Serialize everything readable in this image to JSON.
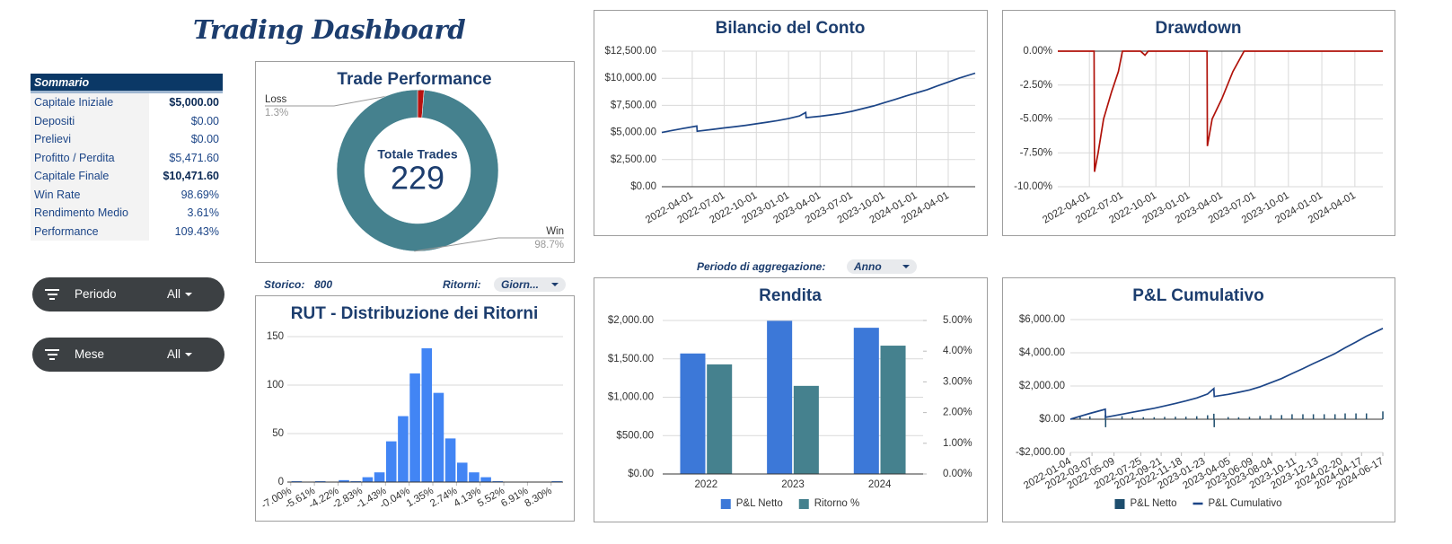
{
  "header": {
    "title": "Trading Dashboard"
  },
  "summary": {
    "title": "Sommario",
    "rows": [
      [
        "Capitale Iniziale",
        "$5,000.00"
      ],
      [
        "Depositi",
        "$0.00"
      ],
      [
        "Prelievi",
        "$0.00"
      ],
      [
        "Profitto / Perdita",
        "$5,471.60"
      ],
      [
        "Capitale Finale",
        "$10,471.60"
      ],
      [
        "Win Rate",
        "98.69%"
      ],
      [
        "Rendimento Medio",
        "3.61%"
      ],
      [
        "Performance",
        "109.43%"
      ]
    ]
  },
  "filters": [
    {
      "label": "Periodo",
      "value": "All"
    },
    {
      "label": "Mese",
      "value": "All"
    }
  ],
  "controls": {
    "storico_label": "Storico:",
    "storico_value": 800,
    "ritorni_label": "Ritorni:",
    "ritorni_value": "Giorn...",
    "periodo_label": "Periodo di aggregazione:",
    "periodo_value": "Anno"
  },
  "chart_data": [
    {
      "type": "pie",
      "title": "Trade Performance",
      "center_label": "Totale Trades",
      "center_value": 229,
      "categories": [
        "Loss",
        "Win"
      ],
      "values": [
        1.3,
        98.7
      ],
      "value_labels": [
        "1.3%",
        "98.7%"
      ],
      "colors": [
        "#b7120f",
        "#45818e"
      ]
    },
    {
      "type": "line",
      "title": "Bilancio del Conto",
      "color": "#1c4587",
      "grid": true,
      "xgrid": true,
      "x": [
        "2022-01-04",
        "2022-02-01",
        "2022-03-01",
        "2022-04-14",
        "2022-04-15",
        "2022-06-01",
        "2022-07-01",
        "2022-08-01",
        "2022-09-01",
        "2022-10-01",
        "2022-11-01",
        "2022-12-01",
        "2023-01-01",
        "2023-02-01",
        "2023-02-19",
        "2023-02-20",
        "2023-04-01",
        "2023-05-01",
        "2023-06-01",
        "2023-07-01",
        "2023-08-01",
        "2023-09-01",
        "2023-10-01",
        "2023-11-01",
        "2023-12-01",
        "2024-01-01",
        "2024-02-01",
        "2024-03-01",
        "2024-04-01",
        "2024-05-01",
        "2024-06-17"
      ],
      "values": [
        5000,
        5180,
        5350,
        5600,
        5120,
        5300,
        5420,
        5540,
        5660,
        5800,
        5950,
        6100,
        6280,
        6520,
        6850,
        6370,
        6500,
        6620,
        6760,
        6950,
        7200,
        7450,
        7750,
        8050,
        8350,
        8650,
        8950,
        9300,
        9650,
        10000,
        10470
      ],
      "xlim": [
        "2022-01-04",
        "2024-06-17"
      ],
      "xticks": [
        "2022-04-01",
        "2022-07-01",
        "2022-10-01",
        "2023-01-01",
        "2023-04-01",
        "2023-07-01",
        "2023-10-01",
        "2024-01-01",
        "2024-04-01"
      ],
      "ylim": [
        0,
        12500
      ],
      "yticks": [
        {
          "value": 0,
          "label": "$0.00"
        },
        {
          "value": 2500,
          "label": "$2,500.00"
        },
        {
          "value": 5000,
          "label": "$5,000.00"
        },
        {
          "value": 7500,
          "label": "$7,500.00"
        },
        {
          "value": 10000,
          "label": "$10,000.00"
        },
        {
          "value": 12500,
          "label": "$12,500.00"
        }
      ]
    },
    {
      "type": "line",
      "title": "Drawdown",
      "color": "#b0120a",
      "grid": true,
      "xgrid": true,
      "x": [
        "2022-01-04",
        "2022-04-14",
        "2022-04-15",
        "2022-04-25",
        "2022-05-10",
        "2022-06-01",
        "2022-06-20",
        "2022-07-01",
        "2022-08-20",
        "2022-09-01",
        "2022-09-10",
        "2023-02-19",
        "2023-02-20",
        "2023-03-05",
        "2023-04-01",
        "2023-05-01",
        "2023-06-01",
        "2024-06-17"
      ],
      "values": [
        0,
        0,
        -8.9,
        -7.5,
        -5.0,
        -3.0,
        -1.5,
        0,
        0,
        -0.3,
        0,
        0,
        -7.0,
        -5.0,
        -3.5,
        -1.5,
        0,
        0
      ],
      "xlim": [
        "2022-01-04",
        "2024-06-17"
      ],
      "xticks": [
        "2022-04-01",
        "2022-07-01",
        "2022-10-01",
        "2023-01-01",
        "2023-04-01",
        "2023-07-01",
        "2023-10-01",
        "2024-01-01",
        "2024-04-01"
      ],
      "ylim": [
        -10,
        0
      ],
      "yticks": [
        {
          "value": 0,
          "label": "0.00%"
        },
        {
          "value": -2.5,
          "label": "-2.50%"
        },
        {
          "value": -5,
          "label": "-5.00%"
        },
        {
          "value": -7.5,
          "label": "-7.50%"
        },
        {
          "value": -10,
          "label": "-10.00%"
        }
      ]
    },
    {
      "type": "histogram",
      "title": "RUT - Distribuzione dei Ritorni",
      "color": "#4285f4",
      "grid": true,
      "bins": [
        -7,
        -6.305,
        -5.61,
        -4.915,
        -4.22,
        -3.525,
        -2.83,
        -2.135,
        -1.44,
        -0.745,
        -0.05,
        0.645,
        1.34,
        2.035,
        2.73,
        3.425,
        4.12,
        4.815,
        5.51,
        6.205,
        6.9,
        7.595,
        8.29,
        8.985
      ],
      "values": [
        1,
        0,
        1,
        0,
        2,
        1,
        5,
        10,
        42,
        68,
        112,
        138,
        92,
        45,
        20,
        10,
        5,
        1,
        0,
        0,
        0,
        0,
        1
      ],
      "xlim": [
        -7.2,
        9.0
      ],
      "xticks": [
        {
          "value": -7,
          "label": "-7.00%"
        },
        {
          "value": -5.61,
          "label": "-5.61%"
        },
        {
          "value": -4.22,
          "label": "-4.22%"
        },
        {
          "value": -2.83,
          "label": "-2.83%"
        },
        {
          "value": -1.43,
          "label": "-1.43%"
        },
        {
          "value": -0.04,
          "label": "-0.04%"
        },
        {
          "value": 1.35,
          "label": "1.35%"
        },
        {
          "value": 2.74,
          "label": "2.74%"
        },
        {
          "value": 4.13,
          "label": "4.13%"
        },
        {
          "value": 5.52,
          "label": "5.52%"
        },
        {
          "value": 6.91,
          "label": "6.91%"
        },
        {
          "value": 8.3,
          "label": "8.30%"
        }
      ],
      "ylim": [
        0,
        150
      ],
      "yticks": [
        0,
        50,
        100,
        150
      ]
    },
    {
      "type": "bar",
      "title": "Rendita",
      "grid": true,
      "legend": "bottom",
      "categories": [
        "2022",
        "2023",
        "2024"
      ],
      "series": [
        {
          "name": "P&L Netto",
          "color": "#3c78d8",
          "values": [
            1570,
            1995,
            1905
          ]
        },
        {
          "name": "Ritorno %",
          "color": "#45818e",
          "axis": "y2",
          "values": [
            3.57,
            2.87,
            4.18
          ]
        }
      ],
      "ylim": [
        0,
        2000
      ],
      "yticks": [
        {
          "value": 0,
          "label": "$0.00"
        },
        {
          "value": 500,
          "label": "$500.00"
        },
        {
          "value": 1000,
          "label": "$1,000.00"
        },
        {
          "value": 1500,
          "label": "$1,500.00"
        },
        {
          "value": 2000,
          "label": "$2,000.00"
        }
      ],
      "y2lim": [
        0,
        5
      ],
      "y2ticks": [
        {
          "value": 0,
          "label": "0.00%"
        },
        {
          "value": 1,
          "label": "1.00%"
        },
        {
          "value": 2,
          "label": "2.00%"
        },
        {
          "value": 3,
          "label": "3.00%"
        },
        {
          "value": 4,
          "label": "4.00%"
        },
        {
          "value": 5,
          "label": "5.00%"
        }
      ]
    },
    {
      "type": "line",
      "title": "P&L Cumulativo",
      "grid": true,
      "xgrid": false,
      "legend": "bottom",
      "x": [
        "2022-01-04",
        "2022-02-01",
        "2022-03-01",
        "2022-04-14",
        "2022-04-15",
        "2022-06-01",
        "2022-07-01",
        "2022-08-01",
        "2022-09-01",
        "2022-10-01",
        "2022-11-01",
        "2022-12-01",
        "2023-01-01",
        "2023-02-01",
        "2023-02-19",
        "2023-02-20",
        "2023-04-01",
        "2023-05-01",
        "2023-06-01",
        "2023-07-01",
        "2023-08-01",
        "2023-09-01",
        "2023-10-01",
        "2023-11-01",
        "2023-12-01",
        "2024-01-01",
        "2024-02-01",
        "2024-03-01",
        "2024-04-01",
        "2024-05-01",
        "2024-06-17"
      ],
      "series": [
        {
          "name": "P&L Netto",
          "type": "bar",
          "color": "#1d4d6d",
          "values": [
            0,
            180,
            170,
            250,
            -480,
            180,
            120,
            120,
            120,
            140,
            150,
            150,
            180,
            240,
            330,
            -480,
            130,
            120,
            140,
            190,
            250,
            250,
            300,
            300,
            300,
            300,
            300,
            350,
            350,
            350,
            470
          ]
        },
        {
          "name": "P&L Cumulativo",
          "color": "#1c4587",
          "values": [
            0,
            180,
            350,
            600,
            120,
            300,
            420,
            540,
            660,
            800,
            950,
            1100,
            1280,
            1520,
            1850,
            1370,
            1500,
            1620,
            1760,
            1950,
            2200,
            2450,
            2750,
            3050,
            3350,
            3650,
            3950,
            4300,
            4650,
            5000,
            5470
          ]
        }
      ],
      "xlim": [
        "2022-01-04",
        "2024-06-17"
      ],
      "xticks": [
        "2022-01-04",
        "2022-03-07",
        "2022-05-09",
        "2022-07-25",
        "2022-09-21",
        "2022-11-18",
        "2023-01-23",
        "2023-04-05",
        "2023-06-09",
        "2023-08-04",
        "2023-10-11",
        "2023-12-13",
        "2024-02-20",
        "2024-04-17",
        "2024-06-17"
      ],
      "ylim": [
        -2000,
        6000
      ],
      "yticks": [
        {
          "value": 6000,
          "label": "$6,000.00"
        },
        {
          "value": 4000,
          "label": "$4,000.00"
        },
        {
          "value": 2000,
          "label": "$2,000.00"
        },
        {
          "value": 0,
          "label": "$0.00"
        },
        {
          "value": -2000,
          "label": "-$2,000.00"
        }
      ]
    }
  ]
}
